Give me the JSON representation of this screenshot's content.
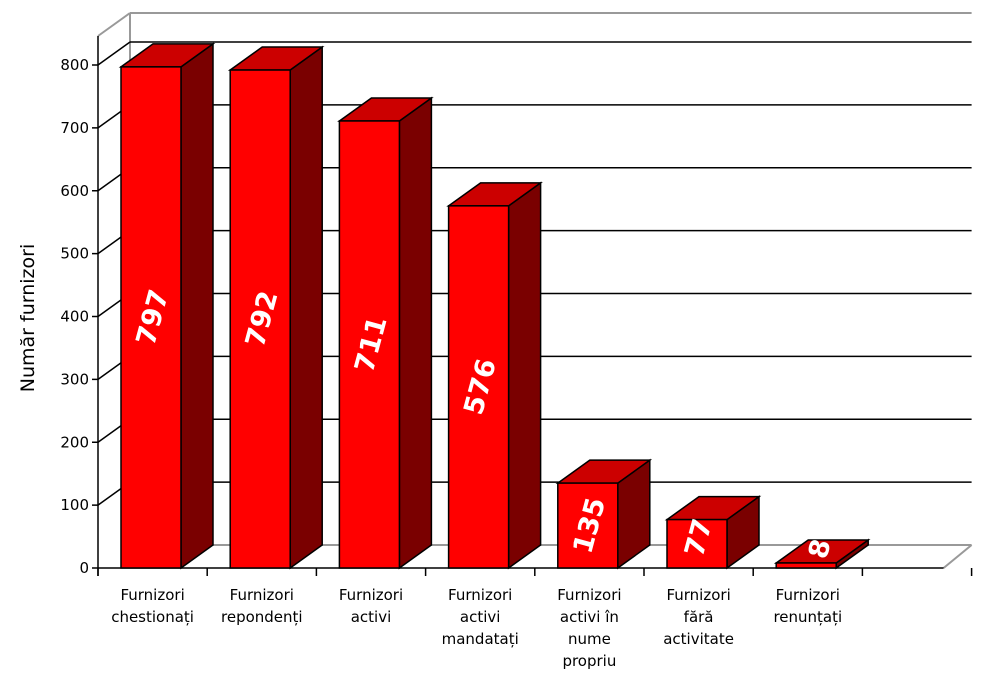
{
  "chart_data": {
    "type": "bar",
    "ylabel": "Număr furnizori",
    "ylim": [
      0,
      800
    ],
    "yticks": [
      0,
      100,
      200,
      300,
      400,
      500,
      600,
      700,
      800
    ],
    "grid": true,
    "categories": [
      [
        "Furnizori",
        "chestionați"
      ],
      [
        "Furnizori",
        "repondenți"
      ],
      [
        "Furnizori",
        "activi"
      ],
      [
        "Furnizori",
        "activi",
        "mandatați"
      ],
      [
        "Furnizori",
        "activi în",
        "nume",
        "propriu"
      ],
      [
        "Furnizori",
        "fără",
        "activitate"
      ],
      [
        "Furnizori",
        "renunțați"
      ]
    ],
    "values": [
      797,
      792,
      711,
      576,
      135,
      77,
      8
    ],
    "colors": {
      "front": "#ff0000",
      "top": "#cc0000",
      "side": "#7a0000",
      "label": "#ffffff"
    }
  }
}
